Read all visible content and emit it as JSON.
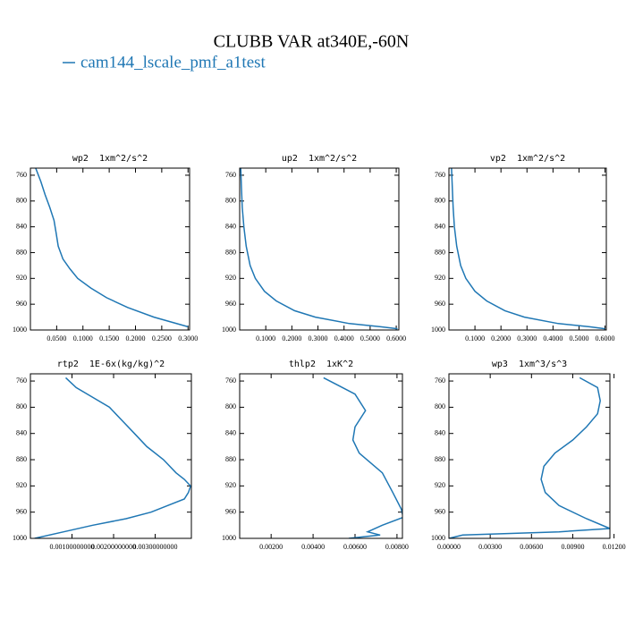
{
  "title": "CLUBB VAR at340E,-60N",
  "chart_data": [
    {
      "type": "line",
      "title": "wp2  1xm^2/s^2",
      "y": [
        749,
        770,
        790,
        810,
        830,
        850,
        870,
        890,
        905,
        920,
        935,
        950,
        965,
        980,
        995
      ],
      "series": [
        {
          "name": "cam144_lscale_pmf_a1test",
          "color": "#1f77b4",
          "values": [
            0.01,
            0.02,
            0.028,
            0.037,
            0.045,
            0.049,
            0.053,
            0.062,
            0.075,
            0.09,
            0.115,
            0.145,
            0.185,
            0.235,
            0.3
          ]
        }
      ],
      "xlim": [
        0,
        0.303
      ],
      "xticks": [
        {
          "value": 0.05,
          "label": "0.0500"
        },
        {
          "value": 0.1,
          "label": "0.1000"
        },
        {
          "value": 0.15,
          "label": "0.1500"
        },
        {
          "value": 0.2,
          "label": "0.2000"
        },
        {
          "value": 0.25,
          "label": "0.2500"
        },
        {
          "value": 0.3,
          "label": "0.3000"
        }
      ],
      "ylim": [
        1000,
        749
      ],
      "yticks": [
        760,
        800,
        840,
        880,
        920,
        960,
        1000
      ]
    },
    {
      "type": "line",
      "title": "up2  1xm^2/s^2",
      "y": [
        749,
        780,
        810,
        840,
        870,
        900,
        920,
        940,
        955,
        970,
        980,
        990,
        995,
        998
      ],
      "series": [
        {
          "name": "cam144_lscale_pmf_a1test",
          "color": "#1f77b4",
          "values": [
            0.004,
            0.007,
            0.01,
            0.016,
            0.025,
            0.04,
            0.06,
            0.095,
            0.14,
            0.21,
            0.29,
            0.42,
            0.54,
            0.605
          ]
        }
      ],
      "xlim": [
        0,
        0.61
      ],
      "xticks": [
        {
          "value": 0.1,
          "label": "0.1000"
        },
        {
          "value": 0.2,
          "label": "0.2000"
        },
        {
          "value": 0.3,
          "label": "0.3000"
        },
        {
          "value": 0.4,
          "label": "0.4000"
        },
        {
          "value": 0.5,
          "label": "0.5000"
        },
        {
          "value": 0.6,
          "label": "0.6000"
        }
      ],
      "ylim": [
        1000,
        749
      ],
      "yticks": [
        760,
        800,
        840,
        880,
        920,
        960,
        1000
      ]
    },
    {
      "type": "line",
      "title": "vp2  1xm^2/s^2",
      "y": [
        749,
        780,
        810,
        840,
        870,
        900,
        920,
        940,
        955,
        970,
        980,
        990,
        995,
        998
      ],
      "series": [
        {
          "name": "cam144_lscale_pmf_a1test",
          "color": "#1f77b4",
          "values": [
            0.01,
            0.013,
            0.016,
            0.021,
            0.03,
            0.045,
            0.065,
            0.1,
            0.145,
            0.215,
            0.29,
            0.42,
            0.54,
            0.6
          ]
        }
      ],
      "xlim": [
        0,
        0.605
      ],
      "xticks": [
        {
          "value": 0.1,
          "label": "0.1000"
        },
        {
          "value": 0.2,
          "label": "0.2000"
        },
        {
          "value": 0.3,
          "label": "0.3000"
        },
        {
          "value": 0.4,
          "label": "0.4000"
        },
        {
          "value": 0.5,
          "label": "0.5000"
        },
        {
          "value": 0.6,
          "label": "0.6000"
        }
      ],
      "ylim": [
        1000,
        749
      ],
      "yticks": [
        760,
        800,
        840,
        880,
        920,
        960,
        1000
      ]
    },
    {
      "type": "line",
      "title": "rtp2  1E-6x(kg/kg)^2",
      "y": [
        755,
        770,
        785,
        800,
        820,
        840,
        860,
        880,
        900,
        910,
        920,
        930,
        940,
        950,
        960,
        970,
        980,
        990,
        1000
      ],
      "series": [
        {
          "name": "cam144_lscale_pmf_a1test",
          "color": "#1f77b4",
          "values": [
            0.00085,
            0.0011,
            0.0015,
            0.0019,
            0.0022,
            0.0025,
            0.0028,
            0.0032,
            0.0035,
            0.0037,
            0.00385,
            0.0038,
            0.0037,
            0.0033,
            0.0029,
            0.0023,
            0.0015,
            0.0008,
            0.0001
          ]
        }
      ],
      "xlim": [
        0,
        0.00387
      ],
      "xticks": [
        {
          "value": 0.001,
          "label": "0.00100000000"
        },
        {
          "value": 0.002,
          "label": "0.00200000000"
        },
        {
          "value": 0.003,
          "label": "0.00300000000"
        }
      ],
      "ylim": [
        1000,
        749
      ],
      "yticks": [
        760,
        800,
        840,
        880,
        920,
        960,
        1000
      ]
    },
    {
      "type": "line",
      "title": "thlp2  1xK^2",
      "y": [
        755,
        780,
        805,
        830,
        850,
        870,
        900,
        930,
        955,
        968,
        980,
        990,
        995,
        1000
      ],
      "series": [
        {
          "name": "cam144_lscale_pmf_a1test",
          "color": "#1f77b4",
          "values": [
            0.0045,
            0.006,
            0.0065,
            0.006,
            0.0059,
            0.0062,
            0.0073,
            0.0078,
            0.0082,
            0.0083,
            0.0073,
            0.0066,
            0.0072,
            0.0057
          ]
        }
      ],
      "xlim": [
        0.0005,
        0.00826
      ],
      "xticks": [
        {
          "value": 0.002,
          "label": "0.00200"
        },
        {
          "value": 0.004,
          "label": "0.00400"
        },
        {
          "value": 0.006,
          "label": "0.00600"
        },
        {
          "value": 0.008,
          "label": "0.00800"
        }
      ],
      "ylim": [
        1000,
        749
      ],
      "yticks": [
        760,
        800,
        840,
        880,
        920,
        960,
        1000
      ]
    },
    {
      "type": "line",
      "title": "wp3  1xm^3/s^3",
      "y": [
        755,
        770,
        790,
        810,
        830,
        850,
        870,
        890,
        910,
        930,
        950,
        970,
        985,
        990,
        995,
        1000
      ],
      "series": [
        {
          "name": "cam144_lscale_pmf_a1test",
          "color": "#1f77b4",
          "values": [
            0.0095,
            0.0108,
            0.011,
            0.0108,
            0.01,
            0.009,
            0.0077,
            0.0069,
            0.0067,
            0.007,
            0.008,
            0.01,
            0.0117,
            0.008,
            0.001,
            0.0
          ]
        }
      ],
      "xlim": [
        0,
        0.0117
      ],
      "xticks": [
        {
          "value": 0,
          "label": "0.00000"
        },
        {
          "value": 0.003,
          "label": "0.00300"
        },
        {
          "value": 0.006,
          "label": "0.00600"
        },
        {
          "value": 0.009,
          "label": "0.00900"
        },
        {
          "value": 0.012,
          "label": "0.01200"
        }
      ],
      "ylim": [
        1000,
        749
      ],
      "yticks": [
        760,
        800,
        840,
        880,
        920,
        960,
        1000
      ]
    }
  ]
}
